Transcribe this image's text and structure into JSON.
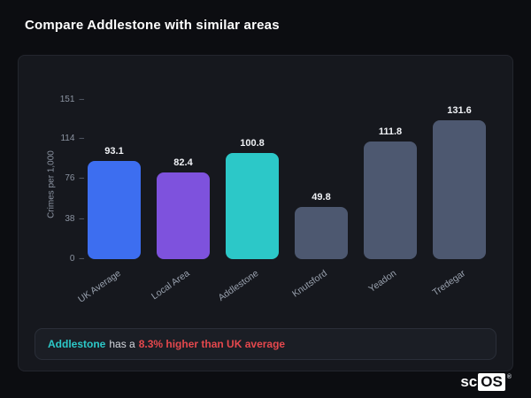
{
  "page_title": "Compare Addlestone with similar areas",
  "chart_data": {
    "type": "bar",
    "categories": [
      "UK Average",
      "Local Area",
      "Addlestone",
      "Knutsford",
      "Yeadon",
      "Tredegar"
    ],
    "values": [
      93.1,
      82.4,
      100.8,
      49.8,
      111.8,
      131.6
    ],
    "bar_colors": [
      "#3d6ef0",
      "#7e52dd",
      "#2cc8c8",
      "#4d5870",
      "#4d5870",
      "#4d5870"
    ],
    "title": "",
    "xlabel": "",
    "ylabel": "Crimes per 1,000",
    "yticks": [
      0,
      38,
      76,
      114,
      151
    ],
    "ylim": [
      0,
      151
    ],
    "grid": false,
    "legend": false
  },
  "footnote": {
    "area": "Addlestone",
    "middle": "has a",
    "highlight": "8.3% higher than UK average",
    "area_color": "#2cc8c8",
    "highlight_color": "#e5484d"
  },
  "logo": {
    "sc": "sc",
    "os": "OS",
    "registered": "®"
  }
}
